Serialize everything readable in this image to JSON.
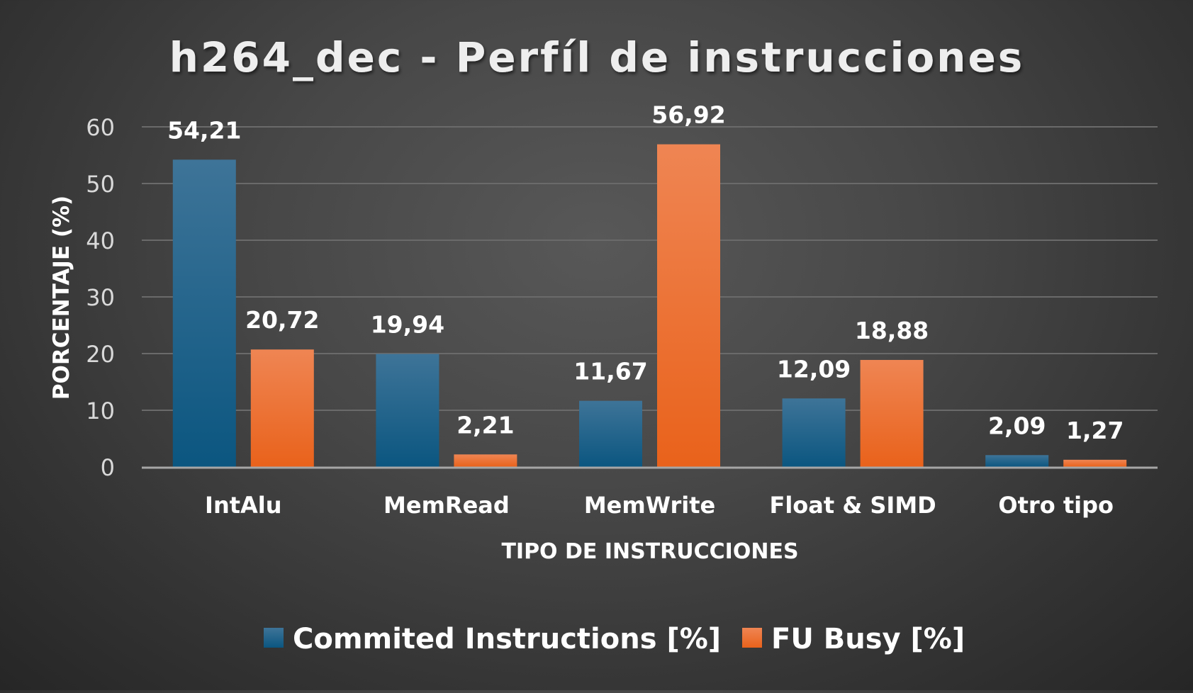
{
  "chart_data": {
    "type": "bar",
    "title": "h264_dec - Perfíl de instrucciones",
    "xlabel": "TIPO DE INSTRUCCIONES",
    "ylabel": "PORCENTAJE (%)",
    "ylim": [
      0,
      60
    ],
    "yticks": [
      "0",
      "10",
      "20",
      "30",
      "40",
      "50",
      "60"
    ],
    "grid": true,
    "legend_position": "bottom",
    "categories": [
      "IntAlu",
      "MemRead",
      "MemWrite",
      "Float & SIMD",
      "Otro tipo"
    ],
    "series": [
      {
        "name": "Commited Instructions [%]",
        "values": [
          54.21,
          19.94,
          11.67,
          12.09,
          2.09
        ],
        "labels": [
          "54,21",
          "19,94",
          "11,67",
          "12,09",
          "2,09"
        ],
        "color": "#0f5a85"
      },
      {
        "name": "FU Busy [%]",
        "values": [
          20.72,
          2.21,
          56.92,
          18.88,
          1.27
        ],
        "labels": [
          "20,72",
          "2,21",
          "56,92",
          "18,88",
          "1,27"
        ],
        "color": "#ee6a22"
      }
    ]
  }
}
